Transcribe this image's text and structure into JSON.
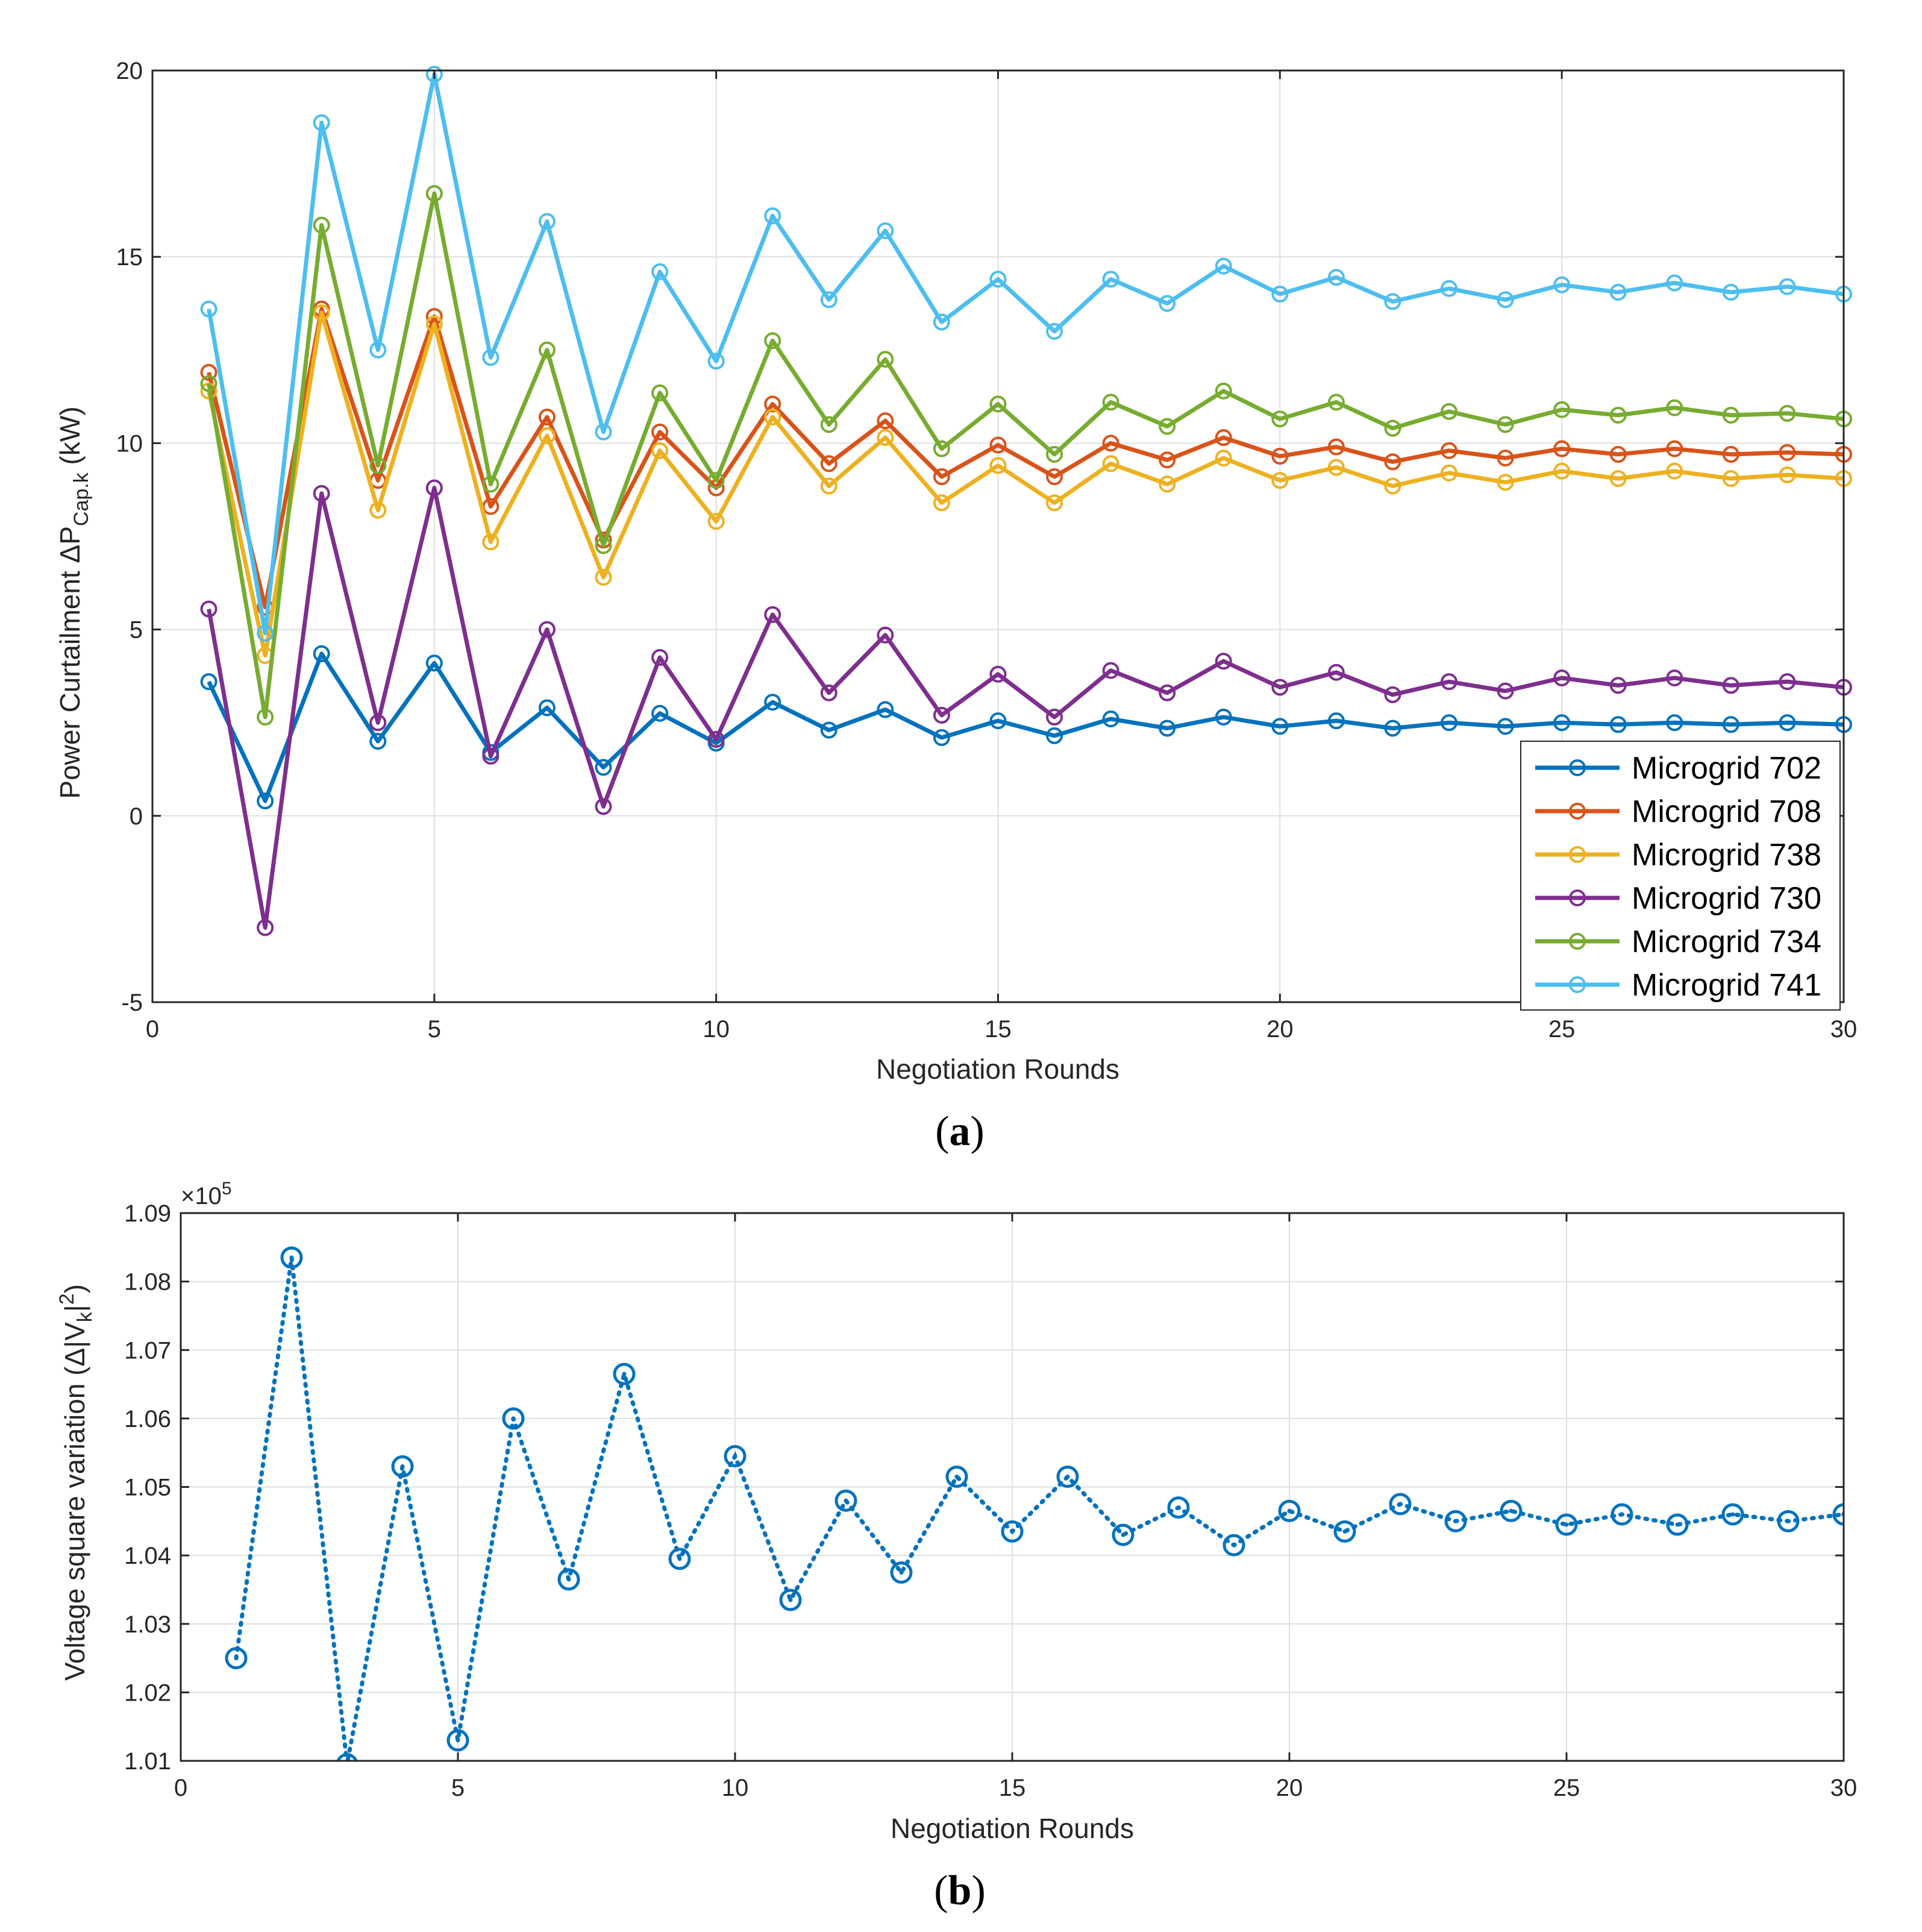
{
  "chart_data": [
    {
      "type": "line",
      "panel_label_open": "(",
      "panel_label_letter": "a",
      "panel_label_close": ")",
      "xlabel": "Negotiation Rounds",
      "ylabel_main": "Power Curtailment ΔP",
      "ylabel_sub": "Cap.k",
      "ylabel_unit": " (kW)",
      "xlim": [
        0,
        30
      ],
      "ylim": [
        -5,
        20
      ],
      "xticks": [
        0,
        5,
        10,
        15,
        20,
        25,
        30
      ],
      "yticks": [
        -5,
        0,
        5,
        10,
        15,
        20
      ],
      "grid": true,
      "legend_position": "bottom-right",
      "marker": "circle",
      "x": [
        1,
        2,
        3,
        4,
        5,
        6,
        7,
        8,
        9,
        10,
        11,
        12,
        13,
        14,
        15,
        16,
        17,
        18,
        19,
        20,
        21,
        22,
        23,
        24,
        25,
        26,
        27,
        28,
        29,
        30
      ],
      "series": [
        {
          "name": "Microgrid 702",
          "color": "#0072BD",
          "values": [
            3.6,
            0.4,
            4.35,
            2.0,
            4.1,
            1.7,
            2.9,
            1.3,
            2.75,
            1.95,
            3.05,
            2.3,
            2.85,
            2.1,
            2.55,
            2.15,
            2.6,
            2.35,
            2.65,
            2.4,
            2.55,
            2.35,
            2.5,
            2.4,
            2.5,
            2.45,
            2.5,
            2.45,
            2.5,
            2.45
          ]
        },
        {
          "name": "Microgrid 708",
          "color": "#D95319",
          "values": [
            11.9,
            5.6,
            13.6,
            9.0,
            13.4,
            8.3,
            10.7,
            7.4,
            10.3,
            8.8,
            11.05,
            9.45,
            10.6,
            9.1,
            9.95,
            9.1,
            10.0,
            9.55,
            10.15,
            9.65,
            9.9,
            9.5,
            9.8,
            9.6,
            9.85,
            9.7,
            9.85,
            9.7,
            9.75,
            9.7
          ]
        },
        {
          "name": "Microgrid 738",
          "color": "#EDB120",
          "values": [
            11.4,
            4.3,
            13.5,
            8.2,
            13.2,
            7.35,
            10.2,
            6.4,
            9.8,
            7.9,
            10.7,
            8.85,
            10.15,
            8.4,
            9.4,
            8.4,
            9.45,
            8.9,
            9.6,
            9.0,
            9.35,
            8.85,
            9.2,
            8.95,
            9.25,
            9.05,
            9.25,
            9.05,
            9.15,
            9.05
          ]
        },
        {
          "name": "Microgrid 730",
          "color": "#7E2F8E",
          "values": [
            5.55,
            -3.0,
            8.65,
            2.5,
            8.8,
            1.6,
            5.0,
            0.25,
            4.25,
            2.05,
            5.4,
            3.3,
            4.85,
            2.7,
            3.8,
            2.65,
            3.9,
            3.3,
            4.15,
            3.45,
            3.85,
            3.25,
            3.6,
            3.35,
            3.7,
            3.5,
            3.7,
            3.5,
            3.6,
            3.45
          ]
        },
        {
          "name": "Microgrid 734",
          "color": "#77AC30",
          "values": [
            11.6,
            2.65,
            15.85,
            9.4,
            16.7,
            8.9,
            12.5,
            7.25,
            11.35,
            9.0,
            12.75,
            10.5,
            12.25,
            9.85,
            11.05,
            9.7,
            11.1,
            10.45,
            11.4,
            10.65,
            11.1,
            10.4,
            10.85,
            10.5,
            10.9,
            10.75,
            10.95,
            10.75,
            10.8,
            10.65
          ]
        },
        {
          "name": "Microgrid 741",
          "color": "#4DBEEE",
          "values": [
            13.6,
            4.9,
            18.6,
            12.5,
            19.9,
            12.3,
            15.95,
            10.3,
            14.6,
            12.2,
            16.1,
            13.85,
            15.7,
            13.25,
            14.4,
            13.0,
            14.4,
            13.75,
            14.75,
            14.0,
            14.45,
            13.8,
            14.15,
            13.85,
            14.25,
            14.05,
            14.3,
            14.05,
            14.2,
            14.0
          ]
        }
      ]
    },
    {
      "type": "line",
      "panel_label_open": "(",
      "panel_label_letter": "b",
      "panel_label_close": ")",
      "xlabel": "Negotiation Rounds",
      "ylabel_main": "Voltage square variation (Δ|V",
      "ylabel_sub": "k",
      "ylabel_tail": "|",
      "ylabel_sup": "2",
      "ylabel_end": ")",
      "exponent_prefix": "×10",
      "exponent_value": "5",
      "xlim": [
        0,
        30
      ],
      "ylim": [
        1.01,
        1.09
      ],
      "xticks": [
        0,
        5,
        10,
        15,
        20,
        25,
        30
      ],
      "yticks": [
        1.01,
        1.02,
        1.03,
        1.04,
        1.05,
        1.06,
        1.07,
        1.08,
        1.09
      ],
      "grid": true,
      "line_style": "dotted",
      "marker": "circle with center dot",
      "color": "#0072BD",
      "x": [
        1,
        2,
        3,
        4,
        5,
        6,
        7,
        8,
        9,
        10,
        11,
        12,
        13,
        14,
        15,
        16,
        17,
        18,
        19,
        20,
        21,
        22,
        23,
        24,
        25,
        26,
        27,
        28,
        29,
        30
      ],
      "values": [
        1.025,
        1.0835,
        1.0095,
        1.053,
        1.013,
        1.06,
        1.0365,
        1.0665,
        1.0395,
        1.0545,
        1.0335,
        1.048,
        1.0375,
        1.0515,
        1.0435,
        1.0515,
        1.043,
        1.047,
        1.0415,
        1.0465,
        1.0435,
        1.0475,
        1.045,
        1.0465,
        1.0445,
        1.046,
        1.0445,
        1.046,
        1.045,
        1.046
      ]
    }
  ]
}
